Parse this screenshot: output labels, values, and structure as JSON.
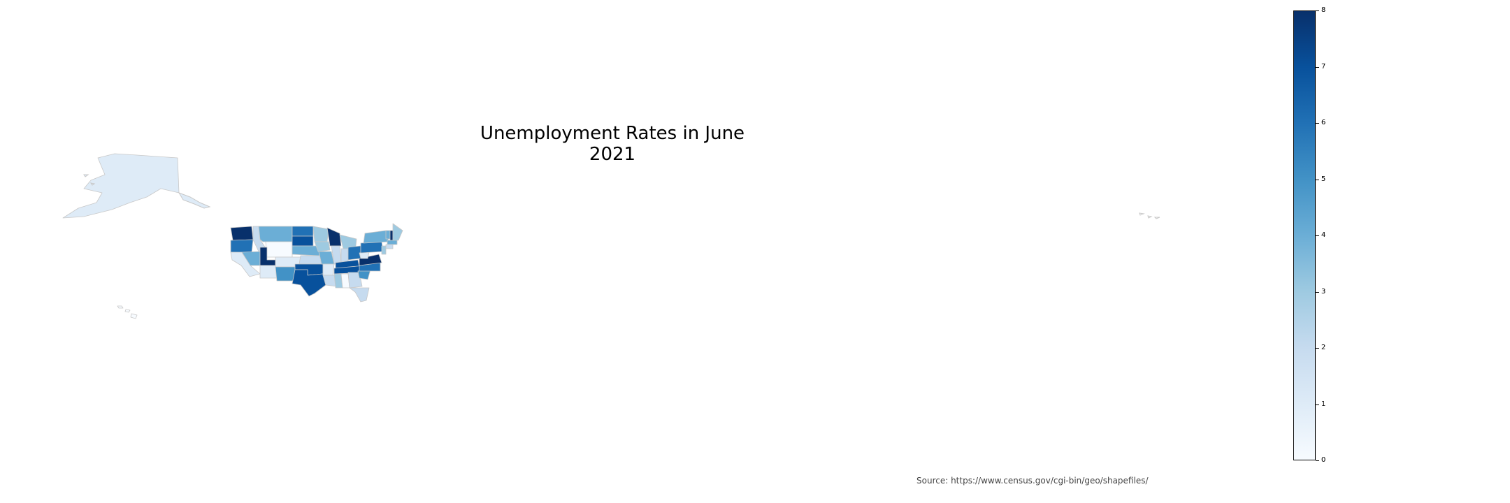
{
  "title": "Unemployment Rates in June 2021",
  "source": "Source: https://www.census.gov/cgi-bin/geo/shapefiles/",
  "colorbar": {
    "min": 0,
    "max": 8,
    "ticks": [
      "0",
      "1",
      "2",
      "3",
      "4",
      "5",
      "6",
      "7",
      "8"
    ],
    "colors": [
      "#f7fbff",
      "#deebf7",
      "#c6dbef",
      "#9ecae1",
      "#6baed6",
      "#4292c6",
      "#2171b5",
      "#08519c",
      "#08306b"
    ]
  },
  "map": {
    "border_color": "#c8c8c8",
    "regions": [
      {
        "name": "Washington",
        "value": 8
      },
      {
        "name": "Oregon",
        "value": 6
      },
      {
        "name": "California",
        "value": 1
      },
      {
        "name": "Nevada",
        "value": 4
      },
      {
        "name": "Idaho",
        "value": 2
      },
      {
        "name": "Montana",
        "value": 4
      },
      {
        "name": "Wyoming",
        "value": 0
      },
      {
        "name": "Utah",
        "value": 8
      },
      {
        "name": "Colorado",
        "value": 1
      },
      {
        "name": "Arizona",
        "value": 1
      },
      {
        "name": "New Mexico",
        "value": 5
      },
      {
        "name": "North Dakota",
        "value": 6
      },
      {
        "name": "South Dakota",
        "value": 7
      },
      {
        "name": "Nebraska",
        "value": 4
      },
      {
        "name": "Kansas",
        "value": 2
      },
      {
        "name": "Oklahoma",
        "value": 7
      },
      {
        "name": "Texas",
        "value": 7
      },
      {
        "name": "Minnesota",
        "value": 3
      },
      {
        "name": "Iowa",
        "value": 3
      },
      {
        "name": "Missouri",
        "value": 4
      },
      {
        "name": "Arkansas",
        "value": 1
      },
      {
        "name": "Louisiana",
        "value": 2
      },
      {
        "name": "Wisconsin",
        "value": 8
      },
      {
        "name": "Illinois",
        "value": 2
      },
      {
        "name": "Michigan",
        "value": 3
      },
      {
        "name": "Indiana",
        "value": 2
      },
      {
        "name": "Ohio",
        "value": 6
      },
      {
        "name": "Kentucky",
        "value": 7
      },
      {
        "name": "Tennessee",
        "value": 7
      },
      {
        "name": "Mississippi",
        "value": 3
      },
      {
        "name": "Alabama",
        "value": 0
      },
      {
        "name": "Georgia",
        "value": 2
      },
      {
        "name": "Florida",
        "value": 2
      },
      {
        "name": "South Carolina",
        "value": 5
      },
      {
        "name": "North Carolina",
        "value": 6
      },
      {
        "name": "Virginia",
        "value": 8
      },
      {
        "name": "West Virginia",
        "value": 1
      },
      {
        "name": "Pennsylvania",
        "value": 6
      },
      {
        "name": "New York",
        "value": 4
      },
      {
        "name": "Vermont",
        "value": 4
      },
      {
        "name": "New Hampshire",
        "value": 8
      },
      {
        "name": "Maine",
        "value": 3
      },
      {
        "name": "Massachusetts",
        "value": 4
      },
      {
        "name": "Connecticut",
        "value": 2
      },
      {
        "name": "New Jersey",
        "value": 3
      },
      {
        "name": "Alaska",
        "value": 1
      },
      {
        "name": "Hawaii",
        "value": 0
      }
    ]
  }
}
